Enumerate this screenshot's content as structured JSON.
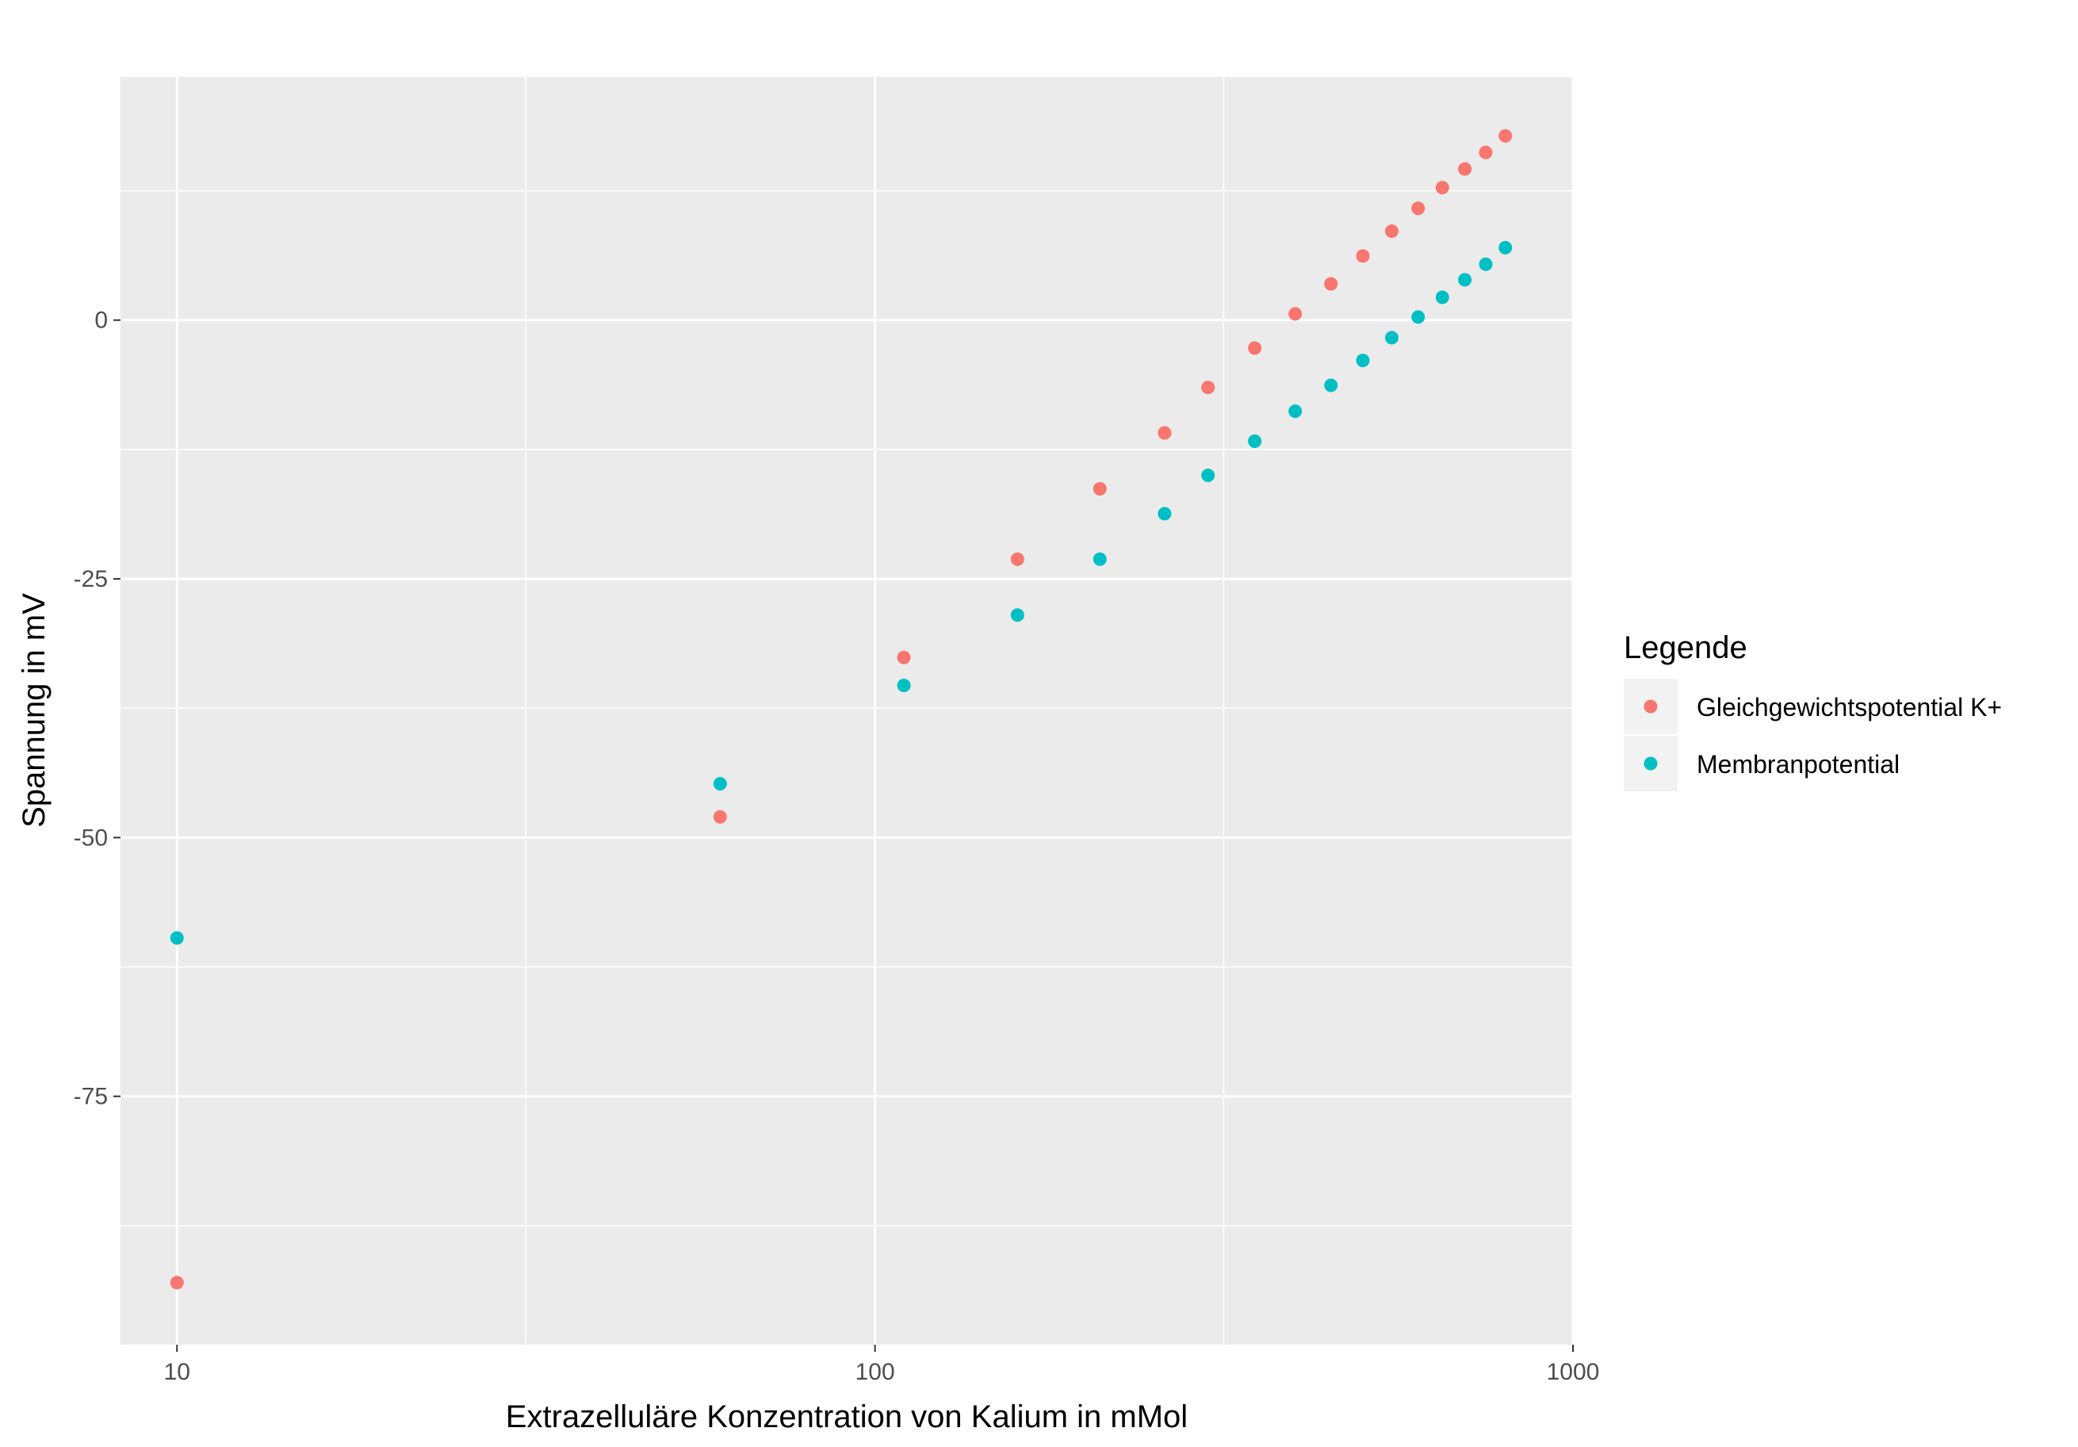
{
  "chart_data": {
    "type": "scatter",
    "xlabel": "Extrazelluläre Konzentration von Kalium in mMol",
    "ylabel": "Spannung in mV",
    "x_scale": "log10",
    "xlim": [
      8.3,
      1000
    ],
    "ylim": [
      -99,
      23.5
    ],
    "x_ticks": [
      {
        "value": 10,
        "label": "10"
      },
      {
        "value": 100,
        "label": "100"
      },
      {
        "value": 1000,
        "label": "1000"
      }
    ],
    "x_minor_ticks": [
      31.6,
      316
    ],
    "y_ticks": [
      {
        "value": 0,
        "label": "0"
      },
      {
        "value": -25,
        "label": "-25"
      },
      {
        "value": -50,
        "label": "-50"
      },
      {
        "value": -75,
        "label": "-75"
      }
    ],
    "y_minor_ticks": [
      12.5,
      -12.5,
      -37.5,
      -62.5,
      -87.5
    ],
    "grid": true,
    "legend": {
      "title": "Legende",
      "position": "right"
    },
    "series": [
      {
        "name": "Gleichgewichtspotential K+",
        "color": "#F8766D",
        "x": [
          10,
          60,
          110,
          160,
          210,
          260,
          300,
          350,
          400,
          450,
          500,
          550,
          600,
          650,
          700,
          750,
          800
        ],
        "y": [
          -93,
          -48,
          -32.6,
          -23.1,
          -16.3,
          -10.9,
          -6.5,
          -2.7,
          0.6,
          3.5,
          6.2,
          8.6,
          10.8,
          12.8,
          14.6,
          16.2,
          17.8
        ]
      },
      {
        "name": "Membranpotential",
        "color": "#00BFC4",
        "x": [
          10,
          60,
          110,
          160,
          210,
          260,
          300,
          350,
          400,
          450,
          500,
          550,
          600,
          650,
          700,
          750,
          800
        ],
        "y": [
          -59.7,
          -44.8,
          -35.3,
          -28.5,
          -23.1,
          -18.7,
          -15,
          -11.7,
          -8.8,
          -6.3,
          -3.9,
          -1.7,
          0.3,
          2.2,
          3.9,
          5.4,
          7
        ]
      }
    ]
  }
}
